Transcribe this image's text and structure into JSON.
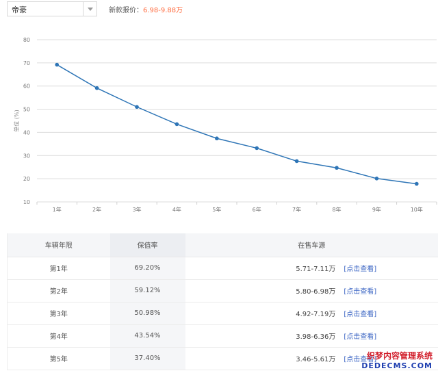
{
  "filter": {
    "selected_model": "帝豪",
    "price_label": "新款报价：",
    "price_range": "6.98-9.88万"
  },
  "chart_data": {
    "type": "line",
    "categories": [
      "1年",
      "2年",
      "3年",
      "4年",
      "5年",
      "6年",
      "7年",
      "8年",
      "9年",
      "10年"
    ],
    "series": [
      {
        "values": [
          69.2,
          59.12,
          50.98,
          43.54,
          37.4,
          33.2,
          27.6,
          24.7,
          20.1,
          17.8
        ]
      }
    ],
    "ylabel": "单位 (%)",
    "ylim": [
      10,
      80
    ],
    "yticks": [
      "10",
      "20",
      "30",
      "40",
      "50",
      "60",
      "70",
      "80"
    ],
    "grid": true,
    "line_color": "#2e75b6"
  },
  "table": {
    "headers": {
      "year": "车辆年限",
      "rate": "保值率",
      "source": "在售车源"
    },
    "rows": [
      {
        "year": "第1年",
        "rate": "69.20%",
        "price": "5.71-7.11万",
        "link": "[点击查看]"
      },
      {
        "year": "第2年",
        "rate": "59.12%",
        "price": "5.80-6.98万",
        "link": "[点击查看]"
      },
      {
        "year": "第3年",
        "rate": "50.98%",
        "price": "4.92-7.19万",
        "link": "[点击查看]"
      },
      {
        "year": "第4年",
        "rate": "43.54%",
        "price": "3.98-6.36万",
        "link": "[点击查看]"
      },
      {
        "year": "第5年",
        "rate": "37.40%",
        "price": "3.46-5.61万",
        "link": "[点击查看]"
      }
    ]
  },
  "watermark": {
    "main": "织梦内容管理系统",
    "sub": "DEDECMS.COM"
  }
}
